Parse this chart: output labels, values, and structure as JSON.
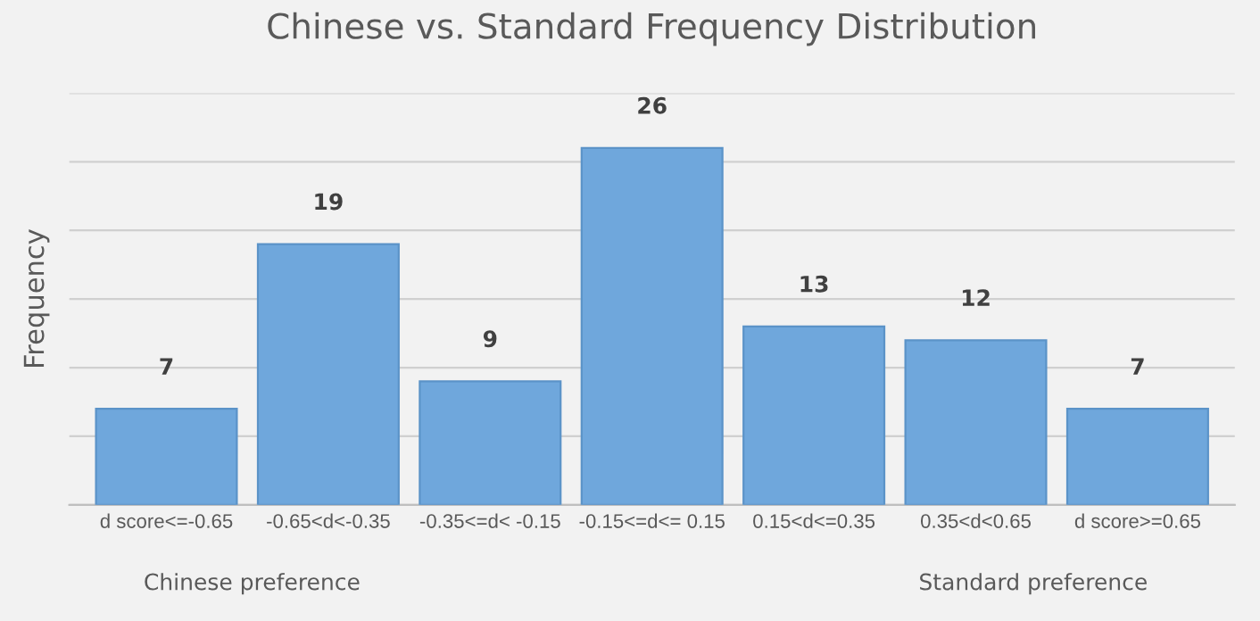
{
  "chart_data": {
    "type": "bar",
    "title": "Chinese vs. Standard Frequency Distribution",
    "ylabel": "Frequency",
    "categories": [
      "d score<=-0.65",
      "-0.65<d<-0.35",
      "-0.35<=d< -0.15",
      "-0.15<=d<= 0.15",
      "0.15<d<=0.35",
      "0.35<d<0.65",
      "d score>=0.65"
    ],
    "values": [
      7,
      19,
      9,
      26,
      13,
      12,
      7
    ],
    "color": "#6fa7dc",
    "ylim": [
      0,
      30
    ],
    "yticks": [
      {
        "value": 0,
        "label": null
      },
      {
        "value": 5,
        "label": null
      },
      {
        "value": 10,
        "label": null
      },
      {
        "value": 15,
        "label": null
      },
      {
        "value": 20,
        "label": null
      },
      {
        "value": 25,
        "label": null
      },
      {
        "value": 30,
        "label": null
      }
    ],
    "grid": "y",
    "data_labels": true,
    "tick_labels": "x",
    "legend": false,
    "annotations": [
      "Chinese preference",
      "Standard preference"
    ]
  }
}
